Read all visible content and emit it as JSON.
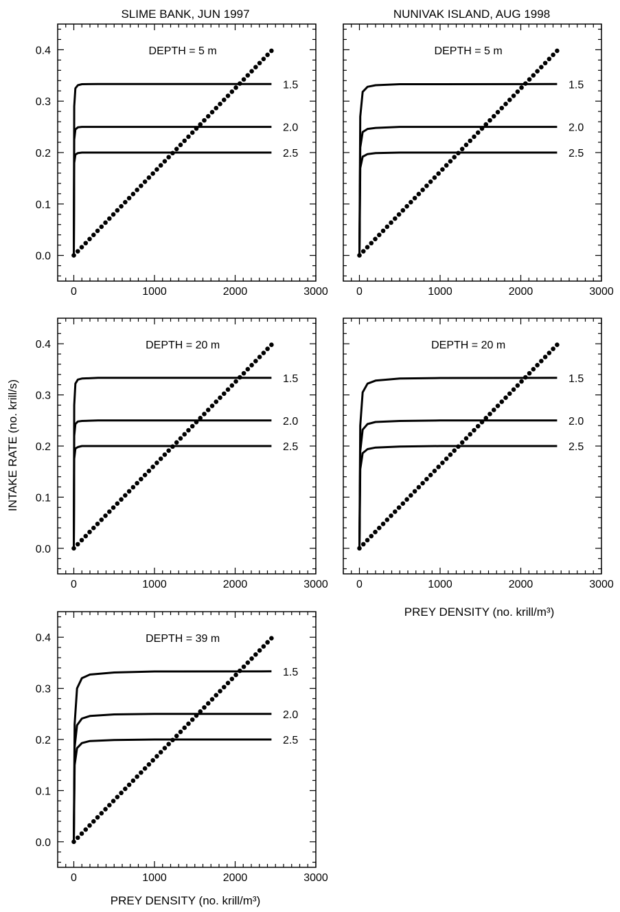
{
  "figure": {
    "column_titles": [
      "SLIME BANK, JUN 1997",
      "NUNIVAK ISLAND, AUG 1998"
    ],
    "ylabel": "INTAKE RATE (no. krill/s)",
    "xlabel": "PREY DENSITY (no. krill/m³)"
  },
  "chart_data": [
    {
      "type": "line",
      "panel": "Slime Bank 5 m",
      "annotation": "DEPTH = 5 m",
      "xlim": [
        -200,
        3000
      ],
      "ylim": [
        -0.05,
        0.45
      ],
      "xticks": [
        "0",
        "1000",
        "2000",
        "3000"
      ],
      "yticks": [
        "0.0",
        "0.1",
        "0.2",
        "0.3",
        "0.4"
      ],
      "series": [
        {
          "name": "1.5",
          "style": "solid",
          "x": [
            0,
            5,
            20,
            50,
            100,
            300,
            1000,
            2450
          ],
          "y": [
            0,
            0.29,
            0.325,
            0.331,
            0.333,
            0.3333,
            0.3333,
            0.3333
          ]
        },
        {
          "name": "2.0",
          "style": "solid",
          "x": [
            0,
            5,
            20,
            50,
            100,
            300,
            1000,
            2450
          ],
          "y": [
            0,
            0.225,
            0.245,
            0.249,
            0.25,
            0.25,
            0.25,
            0.25
          ]
        },
        {
          "name": "2.5",
          "style": "solid",
          "x": [
            0,
            5,
            20,
            50,
            100,
            300,
            1000,
            2450
          ],
          "y": [
            0,
            0.18,
            0.196,
            0.199,
            0.2,
            0.2,
            0.2,
            0.2
          ]
        },
        {
          "style": "dotted",
          "x": [
            0,
            2450
          ],
          "y": [
            0,
            0.398
          ]
        }
      ]
    },
    {
      "type": "line",
      "panel": "Nunivak Island 5 m",
      "annotation": "DEPTH = 5 m",
      "xlim": [
        -200,
        3000
      ],
      "ylim": [
        -0.05,
        0.45
      ],
      "xticks": [
        "0",
        "1000",
        "2000",
        "3000"
      ],
      "yticks": [],
      "series": [
        {
          "name": "1.5",
          "style": "solid",
          "x": [
            0,
            10,
            40,
            100,
            200,
            500,
            1000,
            2450
          ],
          "y": [
            0,
            0.27,
            0.318,
            0.328,
            0.331,
            0.333,
            0.333,
            0.3333
          ]
        },
        {
          "name": "2.0",
          "style": "solid",
          "x": [
            0,
            10,
            40,
            100,
            200,
            500,
            1000,
            2450
          ],
          "y": [
            0,
            0.21,
            0.24,
            0.246,
            0.248,
            0.25,
            0.25,
            0.25
          ]
        },
        {
          "name": "2.5",
          "style": "solid",
          "x": [
            0,
            10,
            40,
            100,
            200,
            500,
            1000,
            2450
          ],
          "y": [
            0,
            0.17,
            0.192,
            0.197,
            0.199,
            0.2,
            0.2,
            0.2
          ]
        },
        {
          "style": "dotted",
          "x": [
            0,
            2450
          ],
          "y": [
            0,
            0.398
          ]
        }
      ]
    },
    {
      "type": "line",
      "panel": "Slime Bank 20 m",
      "annotation": "DEPTH = 20 m",
      "xlim": [
        -200,
        3000
      ],
      "ylim": [
        -0.05,
        0.45
      ],
      "xticks": [
        "0",
        "1000",
        "2000",
        "3000"
      ],
      "yticks": [
        "0.0",
        "0.1",
        "0.2",
        "0.3",
        "0.4"
      ],
      "series": [
        {
          "name": "1.5",
          "style": "solid",
          "x": [
            0,
            5,
            20,
            50,
            100,
            300,
            1000,
            2450
          ],
          "y": [
            0,
            0.28,
            0.322,
            0.33,
            0.332,
            0.3333,
            0.3333,
            0.3333
          ]
        },
        {
          "name": "2.0",
          "style": "solid",
          "x": [
            0,
            5,
            20,
            50,
            100,
            300,
            1000,
            2450
          ],
          "y": [
            0,
            0.22,
            0.243,
            0.248,
            0.249,
            0.25,
            0.25,
            0.25
          ]
        },
        {
          "name": "2.5",
          "style": "solid",
          "x": [
            0,
            5,
            20,
            50,
            100,
            300,
            1000,
            2450
          ],
          "y": [
            0,
            0.175,
            0.195,
            0.198,
            0.2,
            0.2,
            0.2,
            0.2
          ]
        },
        {
          "style": "dotted",
          "x": [
            0,
            2450
          ],
          "y": [
            0,
            0.398
          ]
        }
      ]
    },
    {
      "type": "line",
      "panel": "Nunivak Island 20 m",
      "annotation": "DEPTH = 20 m",
      "xlim": [
        -200,
        3000
      ],
      "ylim": [
        -0.05,
        0.45
      ],
      "xticks": [
        "0",
        "1000",
        "2000",
        "3000"
      ],
      "yticks": [],
      "series": [
        {
          "name": "1.5",
          "style": "solid",
          "x": [
            0,
            10,
            40,
            100,
            200,
            500,
            1000,
            2450
          ],
          "y": [
            0,
            0.24,
            0.305,
            0.322,
            0.328,
            0.332,
            0.333,
            0.3333
          ]
        },
        {
          "name": "2.0",
          "style": "solid",
          "x": [
            0,
            10,
            40,
            100,
            200,
            500,
            1000,
            2450
          ],
          "y": [
            0,
            0.19,
            0.232,
            0.243,
            0.247,
            0.249,
            0.25,
            0.25
          ]
        },
        {
          "name": "2.5",
          "style": "solid",
          "x": [
            0,
            10,
            40,
            100,
            200,
            500,
            1000,
            2450
          ],
          "y": [
            0,
            0.155,
            0.186,
            0.194,
            0.197,
            0.199,
            0.2,
            0.2
          ]
        },
        {
          "style": "dotted",
          "x": [
            0,
            2450
          ],
          "y": [
            0,
            0.398
          ]
        }
      ]
    },
    {
      "type": "line",
      "panel": "Slime Bank 39 m",
      "annotation": "DEPTH = 39 m",
      "xlim": [
        -200,
        3000
      ],
      "ylim": [
        -0.05,
        0.45
      ],
      "xticks": [
        "0",
        "1000",
        "2000",
        "3000"
      ],
      "yticks": [
        "0.0",
        "0.1",
        "0.2",
        "0.3",
        "0.4"
      ],
      "series": [
        {
          "name": "1.5",
          "style": "solid",
          "x": [
            0,
            10,
            40,
            100,
            200,
            500,
            1000,
            2450
          ],
          "y": [
            0,
            0.23,
            0.3,
            0.32,
            0.327,
            0.331,
            0.333,
            0.3333
          ]
        },
        {
          "name": "2.0",
          "style": "solid",
          "x": [
            0,
            10,
            40,
            100,
            200,
            500,
            1000,
            2450
          ],
          "y": [
            0,
            0.185,
            0.228,
            0.241,
            0.246,
            0.249,
            0.25,
            0.25
          ]
        },
        {
          "name": "2.5",
          "style": "solid",
          "x": [
            0,
            10,
            40,
            100,
            200,
            500,
            1000,
            2450
          ],
          "y": [
            0,
            0.15,
            0.183,
            0.193,
            0.197,
            0.199,
            0.2,
            0.2
          ]
        },
        {
          "style": "dotted",
          "x": [
            0,
            2450
          ],
          "y": [
            0,
            0.398
          ]
        }
      ]
    }
  ]
}
